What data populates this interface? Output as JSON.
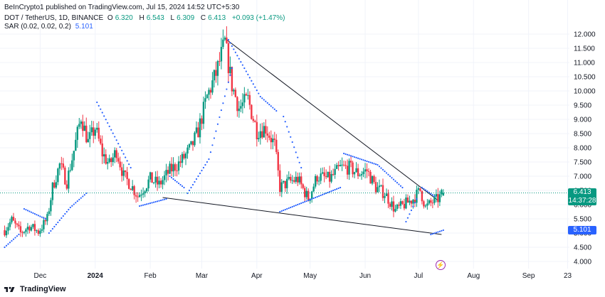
{
  "publisher": "BeInCrypto1 published on TradingView.com, Jul 15, 2024 14:52 UTC+5:30",
  "legend": {
    "symbol": "DOT / TetherUS, 1D, BINANCE",
    "o_label": "O",
    "o_value": "6.320",
    "h_label": "H",
    "h_value": "6.543",
    "l_label": "L",
    "l_value": "6.309",
    "c_label": "C",
    "c_value": "6.413",
    "change": "+0.093 (+1.47%)",
    "sar_label": "SAR (0.02, 0.02, 0.2)",
    "sar_value": "5.101"
  },
  "price_tag": {
    "price": "6.413",
    "countdown": "14:37:28"
  },
  "sar_tag": "5.101",
  "brand": "TradingView",
  "colors": {
    "up": "#089981",
    "down": "#f23645",
    "sar": "#2962ff",
    "trendline": "#131722",
    "price_line": "#089981"
  },
  "chart_data": {
    "type": "candlestick",
    "symbol": "DOT / TetherUS",
    "interval": "1D",
    "exchange": "BINANCE",
    "last": {
      "open": 6.32,
      "high": 6.543,
      "low": 6.309,
      "close": 6.413,
      "change": 0.093,
      "change_pct": 1.47
    },
    "indicator": {
      "name": "SAR",
      "params": [
        0.02,
        0.02,
        0.2
      ],
      "value": 5.101
    },
    "y_ticks": [
      "12.000",
      "11.500",
      "11.000",
      "10.500",
      "10.000",
      "9.500",
      "9.000",
      "8.500",
      "8.000",
      "7.500",
      "7.000",
      "6.500",
      "6.000",
      "5.500",
      "5.000",
      "4.500",
      "4.000"
    ],
    "ylim": [
      4.0,
      12.0
    ],
    "x_ticks": [
      {
        "label": "Dec",
        "date": "2023-12-01"
      },
      {
        "label": "2024",
        "date": "2024-01-01",
        "bold": true
      },
      {
        "label": "Feb",
        "date": "2024-02-01"
      },
      {
        "label": "Mar",
        "date": "2024-03-01"
      },
      {
        "label": "Apr",
        "date": "2024-04-01"
      },
      {
        "label": "May",
        "date": "2024-05-01"
      },
      {
        "label": "Jun",
        "date": "2024-06-01"
      },
      {
        "label": "Jul",
        "date": "2024-07-01"
      },
      {
        "label": "Aug",
        "date": "2024-08-01"
      },
      {
        "label": "Sep",
        "date": "2024-09-01"
      },
      {
        "label": "23",
        "date": "2024-09-23"
      }
    ],
    "close_path": [
      [
        "2023-11-11",
        5.1
      ],
      [
        "2023-11-15",
        5.45
      ],
      [
        "2023-11-20",
        5.0
      ],
      [
        "2023-11-25",
        5.25
      ],
      [
        "2023-11-30",
        5.05
      ],
      [
        "2023-12-05",
        5.5
      ],
      [
        "2023-12-08",
        6.6
      ],
      [
        "2023-12-12",
        7.4
      ],
      [
        "2023-12-16",
        6.8
      ],
      [
        "2023-12-20",
        7.9
      ],
      [
        "2023-12-24",
        9.1
      ],
      [
        "2023-12-28",
        8.2
      ],
      [
        "2024-01-01",
        8.7
      ],
      [
        "2024-01-05",
        7.8
      ],
      [
        "2024-01-09",
        7.4
      ],
      [
        "2024-01-13",
        7.9
      ],
      [
        "2024-01-17",
        7.0
      ],
      [
        "2024-01-21",
        6.7
      ],
      [
        "2024-01-25",
        6.3
      ],
      [
        "2024-02-01",
        6.9
      ],
      [
        "2024-02-06",
        6.7
      ],
      [
        "2024-02-12",
        7.2
      ],
      [
        "2024-02-18",
        7.5
      ],
      [
        "2024-02-24",
        8.0
      ],
      [
        "2024-02-28",
        8.6
      ],
      [
        "2024-03-04",
        9.8
      ],
      [
        "2024-03-09",
        10.6
      ],
      [
        "2024-03-14",
        11.7
      ],
      [
        "2024-03-18",
        10.2
      ],
      [
        "2024-03-22",
        9.4
      ],
      [
        "2024-03-27",
        9.7
      ],
      [
        "2024-04-01",
        8.6
      ],
      [
        "2024-04-06",
        8.7
      ],
      [
        "2024-04-11",
        8.1
      ],
      [
        "2024-04-14",
        6.6
      ],
      [
        "2024-04-19",
        6.8
      ],
      [
        "2024-04-24",
        6.9
      ],
      [
        "2024-04-30",
        6.2
      ],
      [
        "2024-05-05",
        7.0
      ],
      [
        "2024-05-12",
        6.9
      ],
      [
        "2024-05-18",
        7.3
      ],
      [
        "2024-05-23",
        7.3
      ],
      [
        "2024-05-28",
        7.1
      ],
      [
        "2024-06-02",
        7.2
      ],
      [
        "2024-06-07",
        6.6
      ],
      [
        "2024-06-12",
        6.4
      ],
      [
        "2024-06-18",
        5.8
      ],
      [
        "2024-06-23",
        6.0
      ],
      [
        "2024-06-28",
        6.2
      ],
      [
        "2024-07-02",
        6.5
      ],
      [
        "2024-07-05",
        5.9
      ],
      [
        "2024-07-09",
        6.1
      ],
      [
        "2024-07-12",
        6.2
      ],
      [
        "2024-07-15",
        6.413
      ]
    ],
    "sar_segments": [
      [
        [
          "2023-11-11",
          4.5
        ],
        [
          "2023-11-19",
          4.95
        ]
      ],
      [
        [
          "2023-11-22",
          5.85
        ],
        [
          "2023-12-04",
          5.5
        ]
      ],
      [
        [
          "2023-12-06",
          5.0
        ],
        [
          "2023-12-18",
          5.9
        ],
        [
          "2023-12-27",
          6.4
        ]
      ],
      [
        [
          "2024-01-02",
          9.6
        ],
        [
          "2024-01-21",
          7.3
        ]
      ],
      [
        [
          "2024-01-26",
          5.95
        ],
        [
          "2024-02-10",
          6.2
        ]
      ],
      [
        [
          "2024-02-12",
          7.0
        ],
        [
          "2024-02-20",
          6.6
        ]
      ],
      [
        [
          "2024-02-22",
          6.4
        ],
        [
          "2024-03-05",
          7.6
        ],
        [
          "2024-03-18",
          10.8
        ]
      ],
      [
        [
          "2024-03-16",
          11.8
        ],
        [
          "2024-04-03",
          9.8
        ],
        [
          "2024-04-12",
          9.3
        ]
      ],
      [
        [
          "2024-04-16",
          9.1
        ],
        [
          "2024-04-26",
          7.3
        ]
      ],
      [
        [
          "2024-04-14",
          5.75
        ],
        [
          "2024-05-18",
          6.6
        ]
      ],
      [
        [
          "2024-05-20",
          7.8
        ],
        [
          "2024-06-08",
          7.4
        ],
        [
          "2024-06-22",
          6.6
        ]
      ],
      [
        [
          "2024-06-24",
          5.4
        ],
        [
          "2024-06-30",
          6.2
        ]
      ],
      [
        [
          "2024-07-03",
          6.6
        ],
        [
          "2024-07-10",
          6.3
        ]
      ],
      [
        [
          "2024-07-08",
          4.95
        ],
        [
          "2024-07-15",
          5.101
        ]
      ]
    ],
    "trendlines": [
      [
        [
          "2024-03-14",
          11.85
        ],
        [
          "2024-07-12",
          6.15
        ]
      ],
      [
        [
          "2024-02-08",
          6.25
        ],
        [
          "2024-07-14",
          4.95
        ]
      ]
    ],
    "current_price": 6.413
  }
}
